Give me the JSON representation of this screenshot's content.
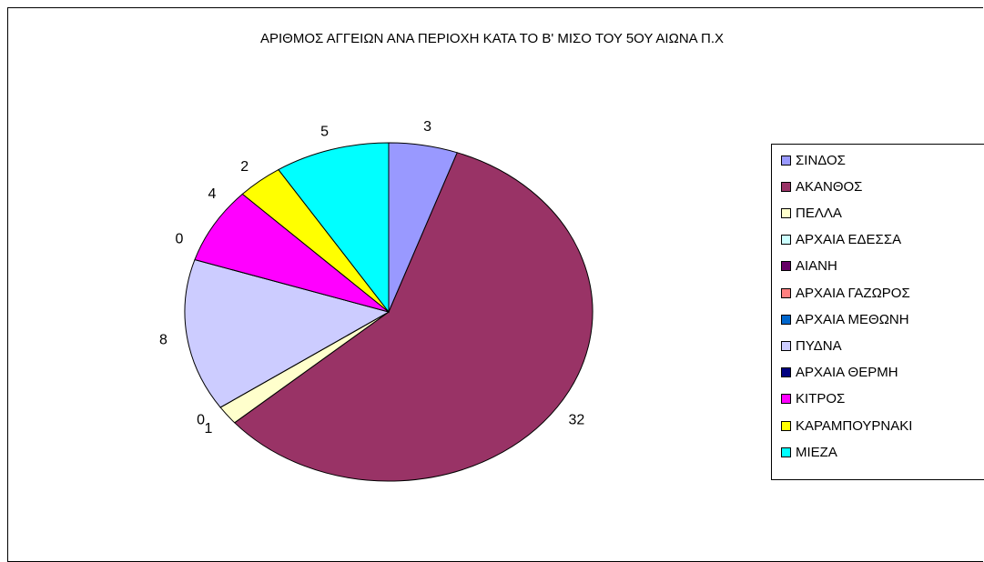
{
  "chart_data": {
    "type": "pie",
    "title": "ΑΡΙΘΜΟΣ ΑΓΓΕΙΩΝ ΑΝΑ ΠΕΡΙΟΧΗ ΚΑΤΑ ΤΟ Β' ΜΙΣΟ ΤΟΥ 5ΟΥ ΑΙΩΝΑ Π.Χ",
    "legend_position": "right",
    "slices": [
      {
        "label": "ΣΙΝΔΟΣ",
        "value": 3,
        "color": "#9999FF"
      },
      {
        "label": "ΑΚΑΝΘΟΣ",
        "value": 32,
        "color": "#993366"
      },
      {
        "label": "ΠΕΛΛΑ",
        "value": 1,
        "color": "#FFFFCC"
      },
      {
        "label": "ΑΡΧΑΙΑ ΕΔΕΣΣΑ",
        "value": 0,
        "color": "#CCFFFF"
      },
      {
        "label": "ΑΙΑΝΗ",
        "value": 0,
        "color": "#660066"
      },
      {
        "label": "ΑΡΧΑΙΑ ΓΑΖΩΡΟΣ",
        "value": 0,
        "color": "#FF8080"
      },
      {
        "label": "ΑΡΧΑΙΑ ΜΕΘΩΝΗ",
        "value": 0,
        "color": "#0066CC"
      },
      {
        "label": "ΠΥΔΝΑ",
        "value": 8,
        "color": "#CCCCFF"
      },
      {
        "label": "ΑΡΧΑΙΑ ΘΕΡΜΗ",
        "value": 0,
        "color": "#000080"
      },
      {
        "label": "ΚΙΤΡΟΣ",
        "value": 4,
        "color": "#FF00FF"
      },
      {
        "label": "ΚΑΡΑΜΠΟΥΡΝΑΚΙ",
        "value": 2,
        "color": "#FFFF00"
      },
      {
        "label": "ΜΙΕΖΑ",
        "value": 5,
        "color": "#00FFFF"
      }
    ],
    "data_labels": [
      {
        "text": "3",
        "slice": 0
      },
      {
        "text": "32",
        "slice": 1
      },
      {
        "text": "1",
        "slice": 2
      },
      {
        "text": "0",
        "slice": 3
      },
      {
        "text": "8",
        "slice": 7
      },
      {
        "text": "0",
        "slice": 9
      },
      {
        "text": "4",
        "slice": 9
      },
      {
        "text": "2",
        "slice": 10
      },
      {
        "text": "5",
        "slice": 11
      }
    ]
  }
}
